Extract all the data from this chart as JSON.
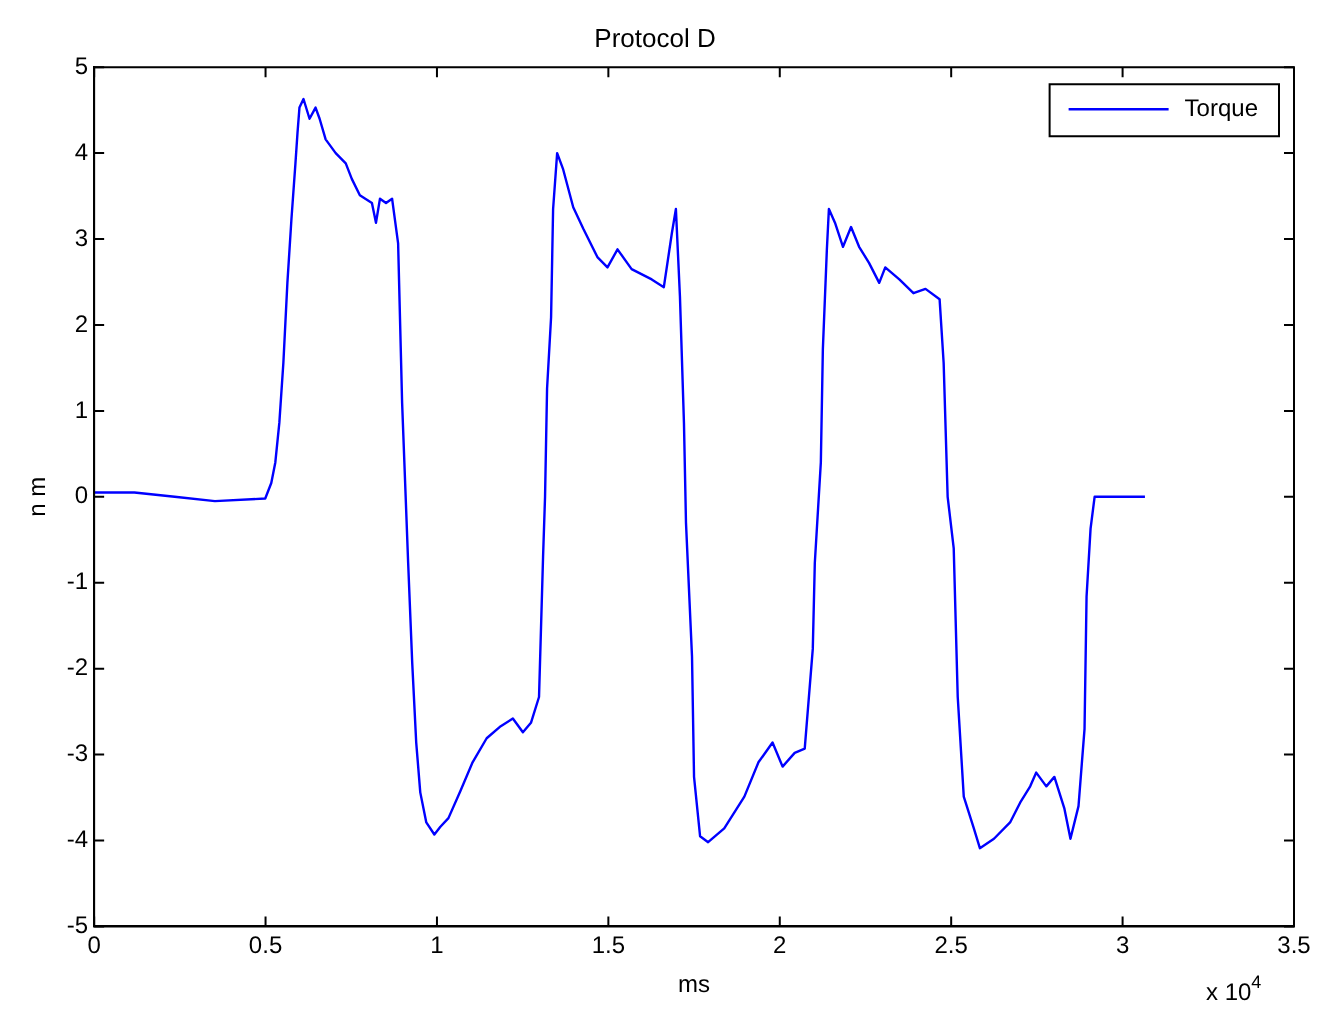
{
  "chart_data": {
    "type": "line",
    "title": "Protocol D",
    "xlabel": "ms",
    "ylabel": "n m",
    "annotations": [
      "x 10$^{4}$"
    ],
    "xlim": [
      0,
      3.5
    ],
    "xticks": [
      0,
      0.5,
      1,
      1.5,
      2,
      2.5,
      3,
      3.5
    ],
    "ylim": [
      -5,
      5
    ],
    "yticks": [
      -5,
      -4,
      -3,
      -2,
      -1,
      0,
      1,
      2,
      3,
      4,
      5
    ],
    "grid": false,
    "legend": "top right",
    "marker": "none",
    "line_style": "solid",
    "series": [
      {
        "name": "Torque",
        "color": "#0000ff",
        "x": [
          0,
          0.1174,
          0.2349,
          0.3523,
          0.4991,
          0.5167,
          0.5285,
          0.5402,
          0.552,
          0.5637,
          0.5755,
          0.5872,
          0.5931,
          0.5989,
          0.6107,
          0.6283,
          0.6459,
          0.6577,
          0.6753,
          0.7046,
          0.734,
          0.7516,
          0.7751,
          0.8103,
          0.8221,
          0.8338,
          0.8514,
          0.8691,
          0.8867,
          0.8984,
          0.916,
          0.9278,
          0.9395,
          0.9513,
          0.9689,
          0.9924,
          1.01,
          1.0335,
          1.0687,
          1.1039,
          1.145,
          1.1861,
          1.2214,
          1.2507,
          1.2742,
          1.2977,
          1.3095,
          1.3153,
          1.3212,
          1.3329,
          1.3388,
          1.3506,
          1.3682,
          1.3975,
          1.4269,
          1.468,
          1.4974,
          1.5267,
          1.5678,
          1.6265,
          1.6618,
          1.6853,
          1.697,
          1.7088,
          1.7205,
          1.7264,
          1.744,
          1.7499,
          1.7675,
          1.791,
          1.838,
          1.8967,
          1.9378,
          1.9789,
          2.0082,
          2.0435,
          2.0728,
          2.0963,
          2.1022,
          2.1198,
          2.1257,
          2.1374,
          2.1433,
          2.161,
          2.1844,
          2.2079,
          2.2314,
          2.2607,
          2.2901,
          2.3077,
          2.3488,
          2.3899,
          2.4251,
          2.4662,
          2.478,
          2.4897,
          2.5074,
          2.5191,
          2.5367,
          2.5661,
          2.5837,
          2.6248,
          2.6718,
          2.7011,
          2.7305,
          2.7481,
          2.7775,
          2.801,
          2.8303,
          2.8479,
          2.8714,
          2.889,
          2.8949,
          2.9066,
          2.9184,
          2.9536,
          3.0652
        ],
        "values": [
          0.05,
          0.05,
          0,
          -0.05,
          -0.02,
          0.16,
          0.4,
          0.86,
          1.56,
          2.49,
          3.23,
          3.88,
          4.23,
          4.53,
          4.63,
          4.4,
          4.53,
          4.4,
          4.16,
          4.0,
          3.88,
          3.7,
          3.51,
          3.42,
          3.19,
          3.47,
          3.42,
          3.47,
          2.95,
          1.09,
          -0.77,
          -1.93,
          -2.86,
          -3.44,
          -3.79,
          -3.93,
          -3.84,
          -3.74,
          -3.42,
          -3.09,
          -2.81,
          -2.67,
          -2.58,
          -2.74,
          -2.63,
          -2.33,
          -0.7,
          0,
          1.26,
          2.09,
          3.35,
          4.0,
          3.81,
          3.37,
          3.12,
          2.79,
          2.67,
          2.88,
          2.65,
          2.53,
          2.44,
          3.07,
          3.35,
          2.33,
          0.86,
          -0.3,
          -1.86,
          -3.26,
          -3.95,
          -4.02,
          -3.86,
          -3.49,
          -3.09,
          -2.86,
          -3.14,
          -2.98,
          -2.93,
          -1.77,
          -0.77,
          0.4,
          1.72,
          2.88,
          3.35,
          3.19,
          2.91,
          3.14,
          2.91,
          2.72,
          2.49,
          2.67,
          2.53,
          2.37,
          2.42,
          2.3,
          1.56,
          0,
          -0.6,
          -2.33,
          -3.49,
          -3.86,
          -4.09,
          -3.98,
          -3.79,
          -3.56,
          -3.37,
          -3.21,
          -3.37,
          -3.26,
          -3.63,
          -3.98,
          -3.6,
          -2.7,
          -1.16,
          -0.37,
          0,
          0,
          0
        ]
      }
    ]
  }
}
